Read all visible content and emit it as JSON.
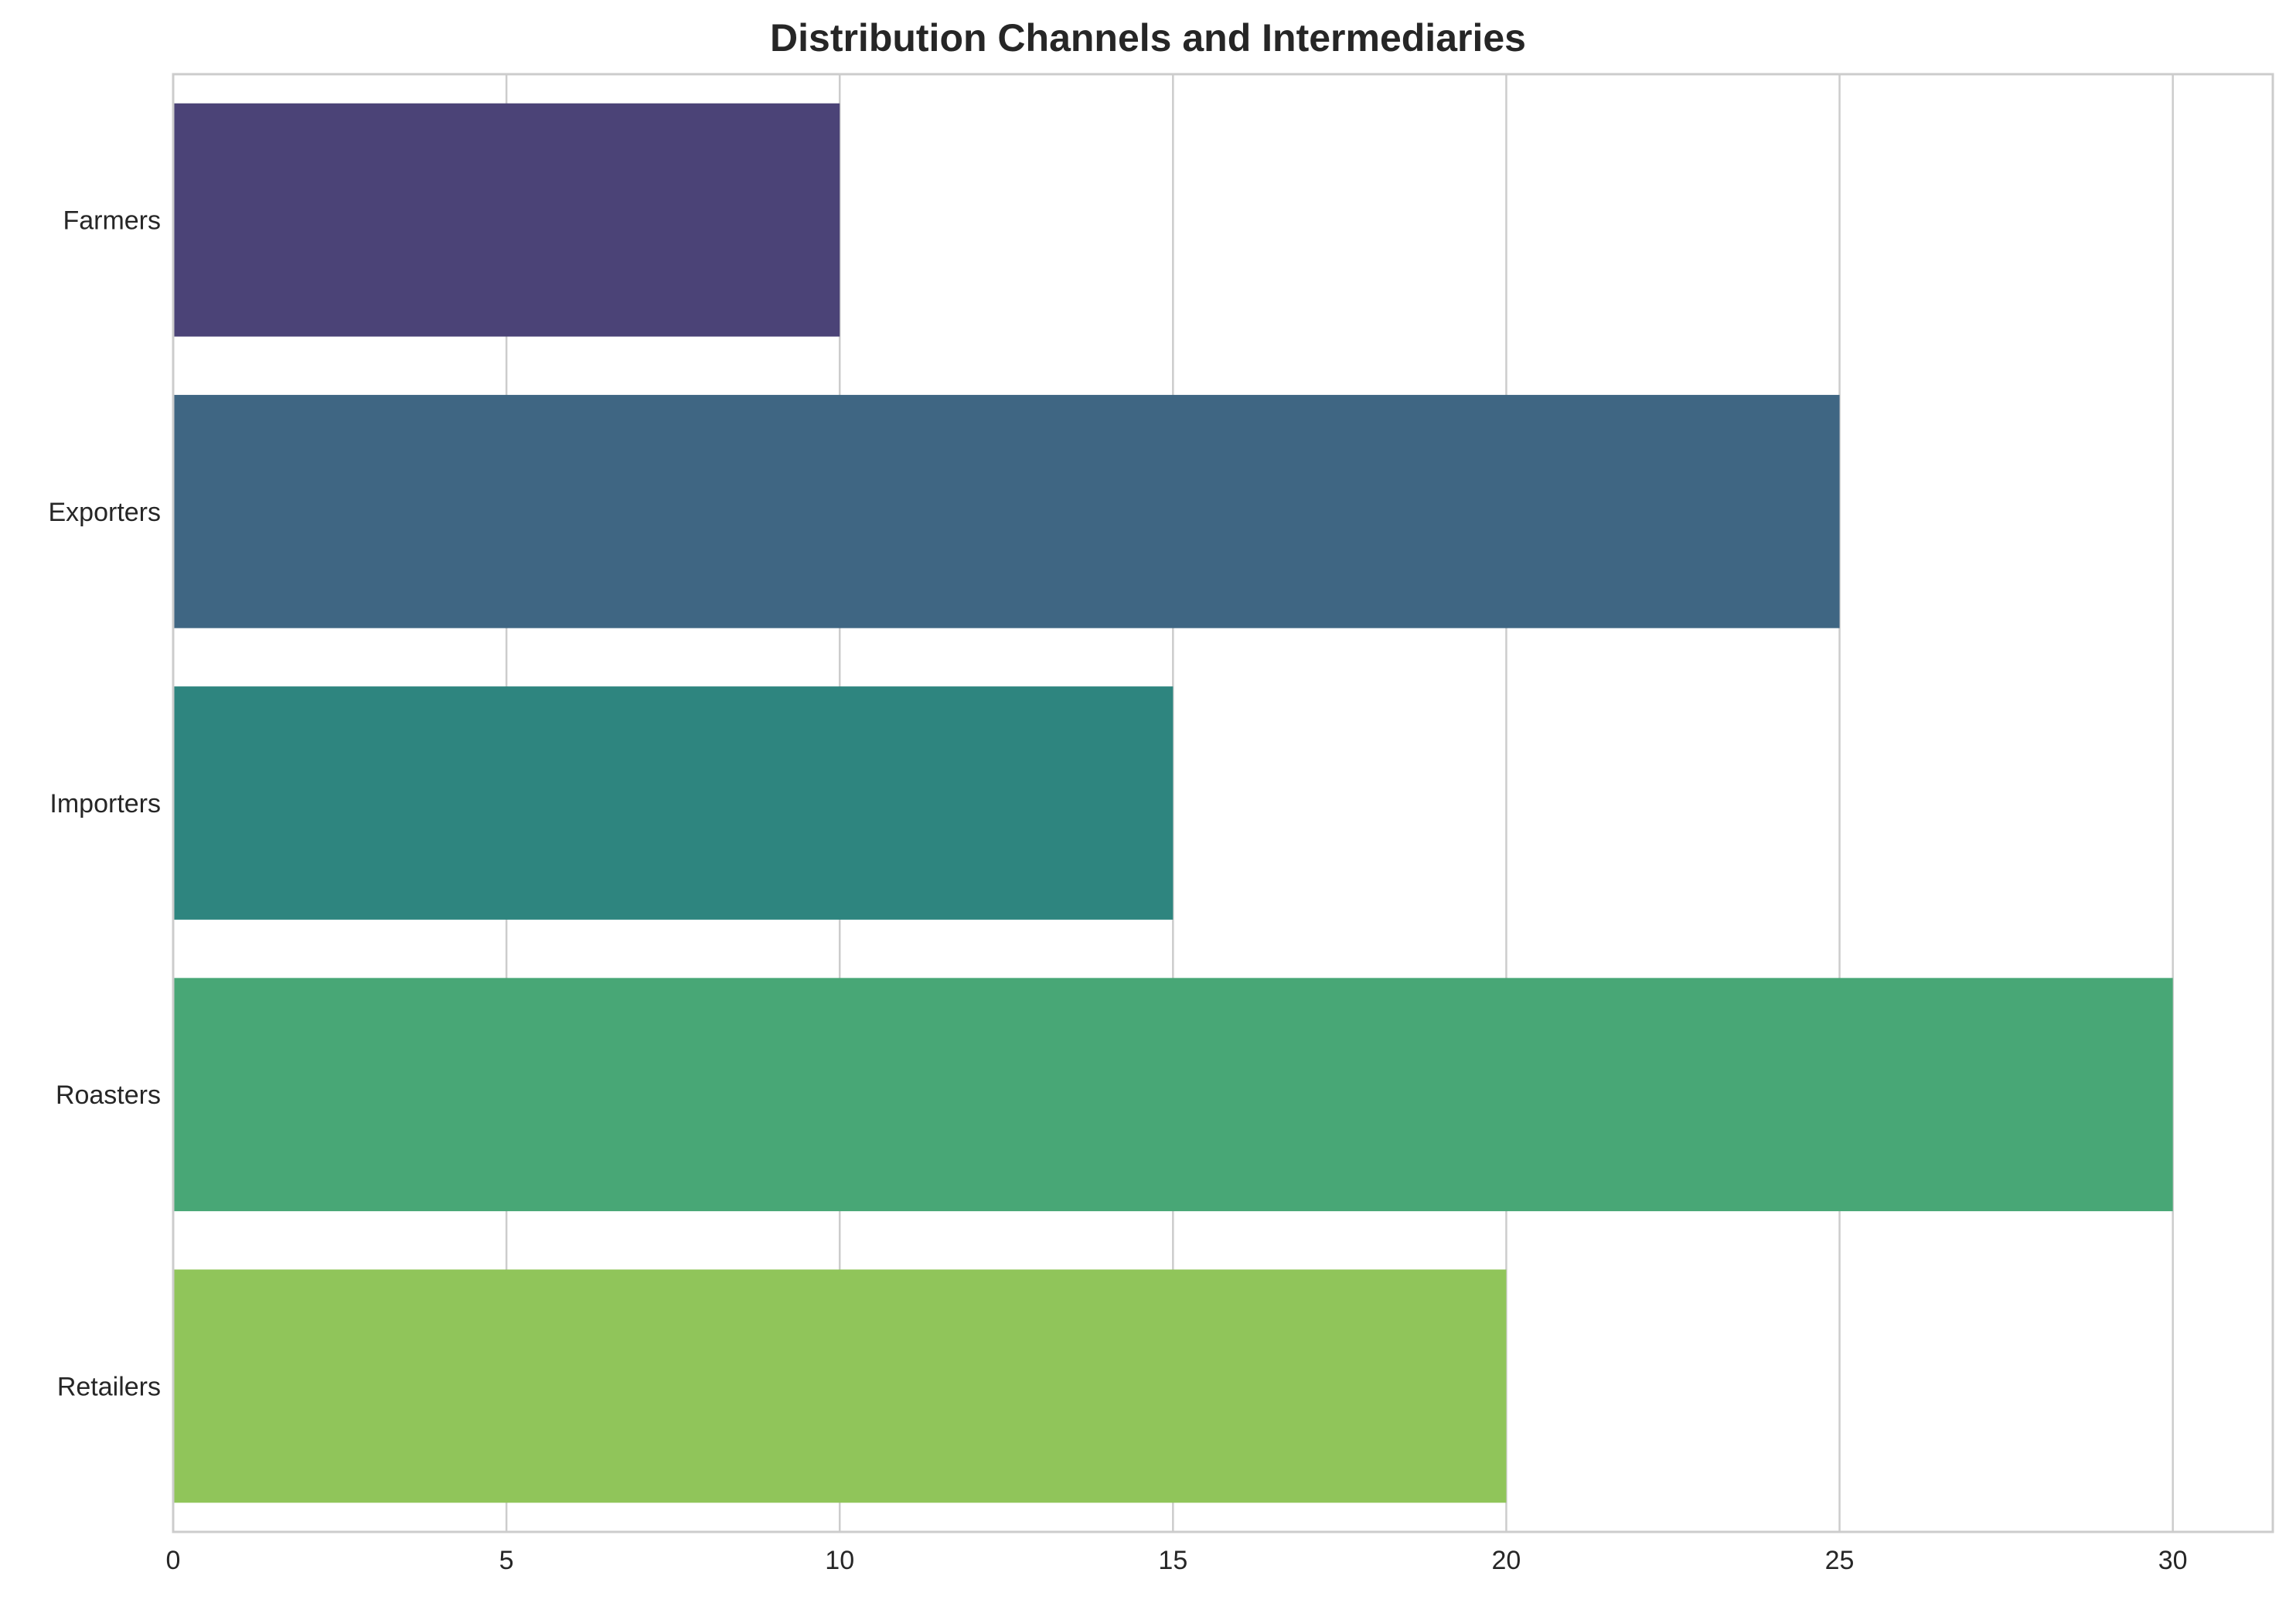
{
  "chart_data": {
    "type": "bar",
    "orientation": "horizontal",
    "title": "Distribution Channels and Intermediaries",
    "xlabel": "",
    "ylabel": "",
    "categories": [
      "Farmers",
      "Exporters",
      "Importers",
      "Roasters",
      "Retailers"
    ],
    "values": [
      10,
      25,
      15,
      30,
      20
    ],
    "xlim": [
      0,
      31.5
    ],
    "xticks": [
      0,
      5,
      10,
      15,
      20,
      25,
      30
    ],
    "grid": "vertical",
    "legend": "none",
    "colors": [
      "#4b4377",
      "#3f6683",
      "#2e857f",
      "#48a776",
      "#90c55a"
    ]
  }
}
